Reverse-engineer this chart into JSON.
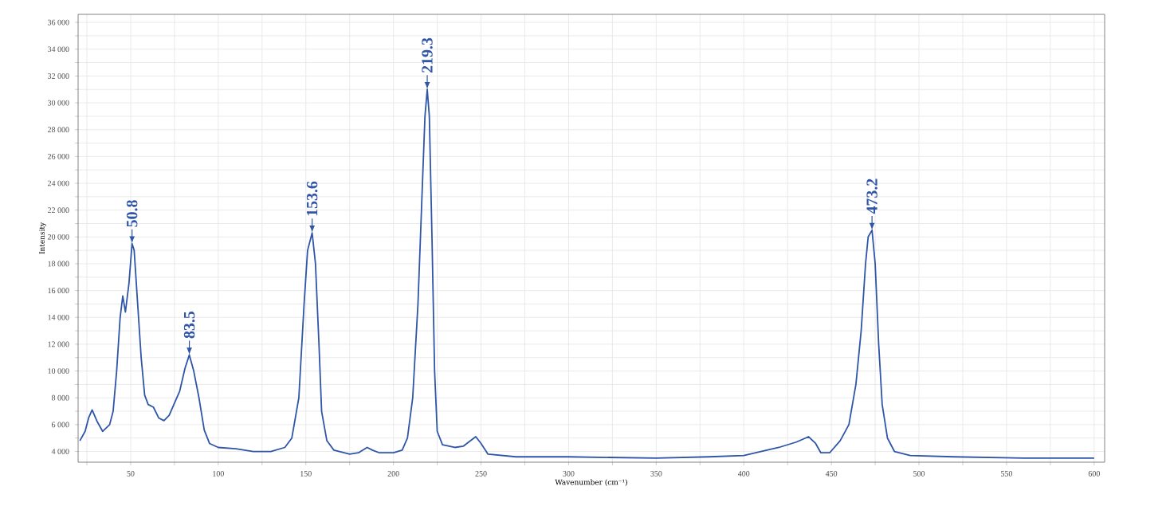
{
  "chart_data": {
    "type": "line",
    "xlabel": "Wavenumber (cm⁻¹)",
    "ylabel": "Intensity",
    "x": [
      21,
      24,
      26,
      28,
      31,
      34,
      38,
      40,
      42,
      44,
      45.5,
      47,
      49,
      50.8,
      52,
      54,
      56,
      58,
      60,
      63,
      66,
      69,
      72,
      75,
      78,
      81,
      83.5,
      86,
      89,
      92,
      95,
      100,
      110,
      120,
      130,
      138,
      142,
      146,
      149,
      151,
      153.6,
      155.5,
      157.5,
      159,
      162,
      166,
      175,
      180,
      185,
      188,
      192,
      200,
      205,
      208,
      211,
      214,
      216,
      218,
      219.3,
      220.5,
      222,
      223.5,
      225,
      228,
      235,
      240,
      244,
      247,
      250,
      254,
      270,
      300,
      350,
      380,
      400,
      420,
      430,
      437,
      441,
      444,
      449,
      455,
      460,
      464,
      467,
      469.5,
      471,
      473.2,
      475,
      477,
      479,
      482,
      486,
      495,
      520,
      560,
      600
    ],
    "series": [
      {
        "color": "#2f55a8",
        "values": [
          4800,
          5500,
          6500,
          7100,
          6200,
          5500,
          6000,
          7000,
          10000,
          14000,
          15600,
          14400,
          16500,
          19500,
          19000,
          15000,
          11000,
          8200,
          7500,
          7300,
          6500,
          6300,
          6700,
          7600,
          8500,
          10200,
          11200,
          10000,
          8000,
          5600,
          4600,
          4300,
          4200,
          4000,
          4000,
          4300,
          5000,
          8000,
          15000,
          19000,
          20300,
          18000,
          12000,
          7000,
          4800,
          4100,
          3800,
          3900,
          4300,
          4100,
          3900,
          3900,
          4100,
          5000,
          8000,
          15000,
          22000,
          29000,
          31000,
          29000,
          20000,
          10000,
          5500,
          4500,
          4300,
          4400,
          4800,
          5100,
          4600,
          3800,
          3600,
          3600,
          3500,
          3600,
          3700,
          4300,
          4700,
          5100,
          4600,
          3900,
          3900,
          4800,
          6000,
          9000,
          13000,
          18000,
          20000,
          20500,
          18000,
          12000,
          7500,
          5000,
          4000,
          3700,
          3600,
          3500,
          3500
        ]
      }
    ],
    "xlim": [
      20,
      606
    ],
    "ylim": [
      3200,
      36600
    ],
    "xticks": [
      {
        "value": 25,
        "label": null
      },
      50,
      {
        "value": 75,
        "label": null
      },
      100,
      {
        "value": 125,
        "label": null
      },
      150,
      {
        "value": 175,
        "label": null
      },
      200,
      {
        "value": 225,
        "label": null
      },
      250,
      {
        "value": 275,
        "label": null
      },
      300,
      {
        "value": 325,
        "label": null
      },
      350,
      {
        "value": 375,
        "label": null
      },
      400,
      {
        "value": 425,
        "label": null
      },
      450,
      {
        "value": 475,
        "label": null
      },
      500,
      {
        "value": 525,
        "label": null
      },
      550,
      {
        "value": 575,
        "label": null
      },
      600
    ],
    "yticks": [
      {
        "value": 4000,
        "label": "4 000"
      },
      {
        "value": 5000,
        "label": null
      },
      {
        "value": 6000,
        "label": "6 000"
      },
      {
        "value": 7000,
        "label": null
      },
      {
        "value": 8000,
        "label": "8 000"
      },
      {
        "value": 9000,
        "label": null
      },
      {
        "value": 10000,
        "label": "10 000"
      },
      {
        "value": 11000,
        "label": null
      },
      {
        "value": 12000,
        "label": "12 000"
      },
      {
        "value": 13000,
        "label": null
      },
      {
        "value": 14000,
        "label": "14 000"
      },
      {
        "value": 15000,
        "label": null
      },
      {
        "value": 16000,
        "label": "16 000"
      },
      {
        "value": 17000,
        "label": null
      },
      {
        "value": 18000,
        "label": "18 000"
      },
      {
        "value": 19000,
        "label": null
      },
      {
        "value": 20000,
        "label": "20 000"
      },
      {
        "value": 21000,
        "label": null
      },
      {
        "value": 22000,
        "label": "22 000"
      },
      {
        "value": 23000,
        "label": null
      },
      {
        "value": 24000,
        "label": "24 000"
      },
      {
        "value": 25000,
        "label": null
      },
      {
        "value": 26000,
        "label": "26 000"
      },
      {
        "value": 27000,
        "label": null
      },
      {
        "value": 28000,
        "label": "28 000"
      },
      {
        "value": 29000,
        "label": null
      },
      {
        "value": 30000,
        "label": "30 000"
      },
      {
        "value": 31000,
        "label": null
      },
      {
        "value": 32000,
        "label": "32 000"
      },
      {
        "value": 33000,
        "label": null
      },
      {
        "value": 34000,
        "label": "34 000"
      },
      {
        "value": 35000,
        "label": null
      },
      {
        "value": 36000,
        "label": "36 000"
      }
    ],
    "grid": true,
    "marker": "none",
    "line_style": "solid",
    "annotations": [
      {
        "text": "50.8",
        "x": 50.8,
        "y": 19500
      },
      {
        "text": "83.5",
        "x": 83.5,
        "y": 11200
      },
      {
        "text": "153.6",
        "x": 153.6,
        "y": 20300
      },
      {
        "text": "219.3",
        "x": 219.3,
        "y": 31000
      },
      {
        "text": "473.2",
        "x": 473.2,
        "y": 20500
      }
    ]
  }
}
